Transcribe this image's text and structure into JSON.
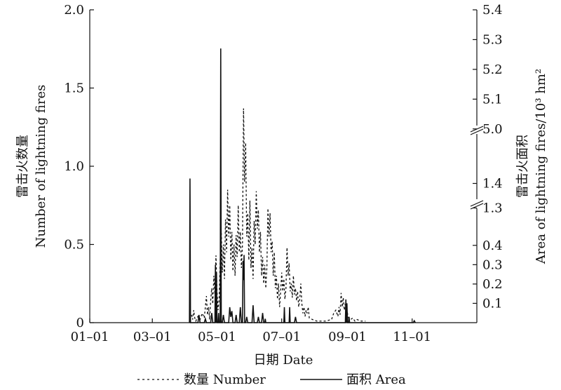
{
  "chart_data": {
    "type": "line",
    "xlabel": "日期 Date",
    "ylabel_left": [
      "雷击火数量",
      "Number of lightning fires"
    ],
    "ylabel_right": [
      "雷击火面积",
      "Area of lightning fires/10³ hm²"
    ],
    "x_ticks": [
      "01–01",
      "03–01",
      "05–01",
      "07–01",
      "09–01",
      "11–01"
    ],
    "x_tick_days": [
      0,
      59,
      120,
      181,
      243,
      304
    ],
    "x_range_days": [
      0,
      365
    ],
    "y_left_ticks": [
      "0",
      "0.5",
      "1.0",
      "1.5",
      "2.0"
    ],
    "y_left_range": [
      0,
      2.0
    ],
    "y_right_ticks": [
      "0.1",
      "0.2",
      "0.3",
      "0.4",
      "1.3",
      "1.4",
      "5.0",
      "5.1",
      "5.2",
      "5.3",
      "5.4"
    ],
    "y_right_segments": [
      [
        0,
        0.45
      ],
      [
        1.25,
        1.45
      ],
      [
        4.95,
        5.4
      ]
    ],
    "legend_placement": "bottom",
    "series": [
      {
        "name": "数量 Number",
        "style": "dashed",
        "axis": "left",
        "points": [
          [
            96,
            0.05
          ],
          [
            97,
            0.02
          ],
          [
            98,
            0.08
          ],
          [
            99,
            0.03
          ],
          [
            100,
            0.01
          ],
          [
            102,
            0.04
          ],
          [
            104,
            0.02
          ],
          [
            106,
            0.06
          ],
          [
            108,
            0.03
          ],
          [
            110,
            0.17
          ],
          [
            111,
            0.05
          ],
          [
            112,
            0.1
          ],
          [
            113,
            0.02
          ],
          [
            114,
            0.14
          ],
          [
            115,
            0.22
          ],
          [
            116,
            0.12
          ],
          [
            117,
            0.3
          ],
          [
            118,
            0.18
          ],
          [
            119,
            0.43
          ],
          [
            120,
            0.2
          ],
          [
            121,
            0.08
          ],
          [
            122,
            0.15
          ],
          [
            123,
            0.4
          ],
          [
            124,
            0.58
          ],
          [
            125,
            0.32
          ],
          [
            126,
            0.5
          ],
          [
            127,
            0.28
          ],
          [
            128,
            0.66
          ],
          [
            129,
            0.45
          ],
          [
            130,
            0.85
          ],
          [
            131,
            0.55
          ],
          [
            132,
            0.75
          ],
          [
            133,
            0.4
          ],
          [
            134,
            0.58
          ],
          [
            135,
            0.33
          ],
          [
            136,
            0.5
          ],
          [
            137,
            0.3
          ],
          [
            138,
            0.56
          ],
          [
            139,
            0.42
          ],
          [
            140,
            0.75
          ],
          [
            141,
            0.45
          ],
          [
            142,
            0.58
          ],
          [
            143,
            0.35
          ],
          [
            144,
            0.5
          ],
          [
            145,
            1.37
          ],
          [
            146,
            0.9
          ],
          [
            147,
            1.15
          ],
          [
            148,
            0.55
          ],
          [
            149,
            0.7
          ],
          [
            150,
            0.4
          ],
          [
            151,
            0.78
          ],
          [
            152,
            0.35
          ],
          [
            153,
            0.48
          ],
          [
            154,
            0.28
          ],
          [
            155,
            0.65
          ],
          [
            156,
            0.5
          ],
          [
            157,
            0.84
          ],
          [
            158,
            0.6
          ],
          [
            159,
            0.72
          ],
          [
            160,
            0.45
          ],
          [
            161,
            0.58
          ],
          [
            162,
            0.3
          ],
          [
            163,
            0.42
          ],
          [
            164,
            0.25
          ],
          [
            165,
            0.37
          ],
          [
            166,
            0.22
          ],
          [
            167,
            0.35
          ],
          [
            168,
            0.73
          ],
          [
            169,
            0.55
          ],
          [
            170,
            0.7
          ],
          [
            171,
            0.45
          ],
          [
            172,
            0.52
          ],
          [
            173,
            0.3
          ],
          [
            174,
            0.45
          ],
          [
            175,
            0.22
          ],
          [
            176,
            0.3
          ],
          [
            177,
            0.15
          ],
          [
            178,
            0.25
          ],
          [
            179,
            0.1
          ],
          [
            180,
            0.2
          ],
          [
            181,
            0.32
          ],
          [
            182,
            0.2
          ],
          [
            183,
            0.28
          ],
          [
            184,
            0.15
          ],
          [
            185,
            0.22
          ],
          [
            186,
            0.48
          ],
          [
            187,
            0.3
          ],
          [
            188,
            0.38
          ],
          [
            189,
            0.2
          ],
          [
            190,
            0.25
          ],
          [
            191,
            0.16
          ],
          [
            192,
            0.3
          ],
          [
            193,
            0.18
          ],
          [
            194,
            0.22
          ],
          [
            195,
            0.14
          ],
          [
            196,
            0.2
          ],
          [
            197,
            0.1
          ],
          [
            198,
            0.15
          ],
          [
            199,
            0.25
          ],
          [
            200,
            0.12
          ],
          [
            201,
            0.06
          ],
          [
            202,
            0.1
          ],
          [
            203,
            0.04
          ],
          [
            204,
            0.08
          ],
          [
            205,
            0.06
          ],
          [
            206,
            0.1
          ],
          [
            207,
            0.03
          ],
          [
            210,
            0.02
          ],
          [
            214,
            0.01
          ],
          [
            218,
            0.01
          ],
          [
            222,
            0.01
          ],
          [
            228,
            0.02
          ],
          [
            230,
            0.06
          ],
          [
            232,
            0.08
          ],
          [
            234,
            0.04
          ],
          [
            235,
            0.1
          ],
          [
            236,
            0.05
          ],
          [
            237,
            0.19
          ],
          [
            238,
            0.1
          ],
          [
            239,
            0.16
          ],
          [
            240,
            0.08
          ],
          [
            241,
            0.12
          ],
          [
            242,
            0.04
          ],
          [
            243,
            0.06
          ],
          [
            244,
            0.03
          ],
          [
            246,
            0.02
          ],
          [
            248,
            0.03
          ],
          [
            250,
            0.01
          ],
          [
            252,
            0.02
          ],
          [
            256,
            0.01
          ],
          [
            260,
            0.01
          ]
        ]
      },
      {
        "name": "面积 Area",
        "style": "solid",
        "axis": "right",
        "points": [
          [
            94,
            0
          ],
          [
            94.5,
            1.42
          ],
          [
            95,
            0
          ],
          [
            102,
            0
          ],
          [
            103,
            0.04
          ],
          [
            104,
            0
          ],
          [
            108,
            0
          ],
          [
            109,
            0.02
          ],
          [
            110,
            0
          ],
          [
            114,
            0
          ],
          [
            115,
            0.05
          ],
          [
            116,
            0
          ],
          [
            118,
            0
          ],
          [
            118.5,
            0.3
          ],
          [
            119,
            0
          ],
          [
            119.5,
            0.26
          ],
          [
            120,
            0
          ],
          [
            121,
            0
          ],
          [
            121.5,
            0.05
          ],
          [
            122,
            0
          ],
          [
            123,
            0
          ],
          [
            123.5,
            5.27
          ],
          [
            124,
            0
          ],
          [
            125,
            0
          ],
          [
            126,
            0.04
          ],
          [
            127,
            0
          ],
          [
            131,
            0
          ],
          [
            132,
            0.08
          ],
          [
            133,
            0.03
          ],
          [
            134,
            0.06
          ],
          [
            135,
            0
          ],
          [
            137,
            0
          ],
          [
            138,
            0.04
          ],
          [
            139,
            0
          ],
          [
            141,
            0
          ],
          [
            142,
            0.08
          ],
          [
            143,
            0
          ],
          [
            144,
            0
          ],
          [
            144.5,
            0.32
          ],
          [
            145,
            0.22
          ],
          [
            145.5,
            0.35
          ],
          [
            146,
            0
          ],
          [
            147,
            0
          ],
          [
            148,
            0.03
          ],
          [
            149,
            0
          ],
          [
            153,
            0
          ],
          [
            154,
            0.09
          ],
          [
            155,
            0
          ],
          [
            158,
            0
          ],
          [
            159,
            0.03
          ],
          [
            160,
            0
          ],
          [
            162,
            0
          ],
          [
            163,
            0.05
          ],
          [
            164,
            0
          ],
          [
            165,
            0
          ],
          [
            165.5,
            0.02
          ],
          [
            166,
            0
          ],
          [
            183,
            0
          ],
          [
            183.5,
            0.08
          ],
          [
            184,
            0
          ],
          [
            188,
            0
          ],
          [
            188.5,
            0.08
          ],
          [
            189,
            0
          ],
          [
            193,
            0
          ],
          [
            194,
            0.03
          ],
          [
            195,
            0
          ],
          [
            241,
            0
          ],
          [
            241.5,
            0.12
          ],
          [
            242,
            0
          ],
          [
            242.5,
            0.1
          ],
          [
            243,
            0
          ],
          [
            244,
            0
          ],
          [
            244.5,
            0.03
          ],
          [
            245,
            0
          ],
          [
            305,
            0
          ],
          [
            306,
            0.01
          ],
          [
            307,
            0
          ]
        ]
      }
    ]
  }
}
